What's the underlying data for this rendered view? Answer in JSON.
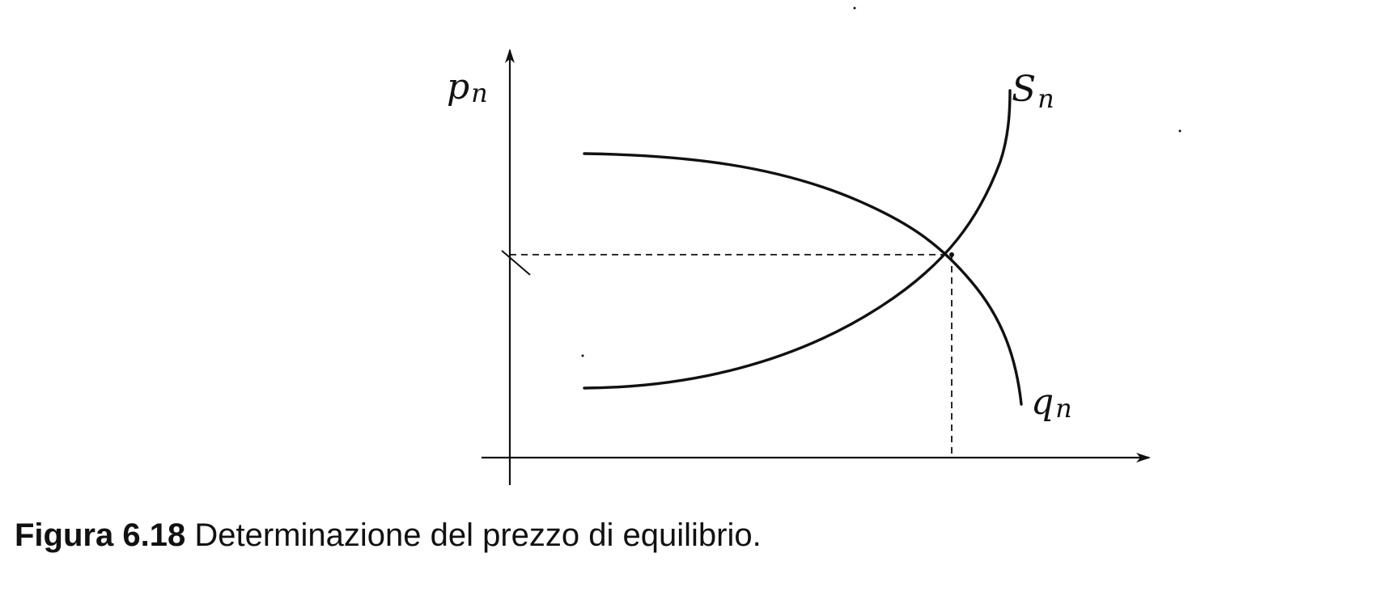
{
  "diagram": {
    "y_axis_label": {
      "base": "p",
      "sub": "n"
    },
    "supply_label": {
      "base": "S",
      "sub": "n"
    },
    "demand_label": {
      "base": "q",
      "sub": "n"
    }
  },
  "caption": {
    "number": "Figura 6.18",
    "text": "Determinazione del prezzo di equilibrio."
  },
  "colors": {
    "ink": "#111111",
    "background": "#ffffff"
  }
}
